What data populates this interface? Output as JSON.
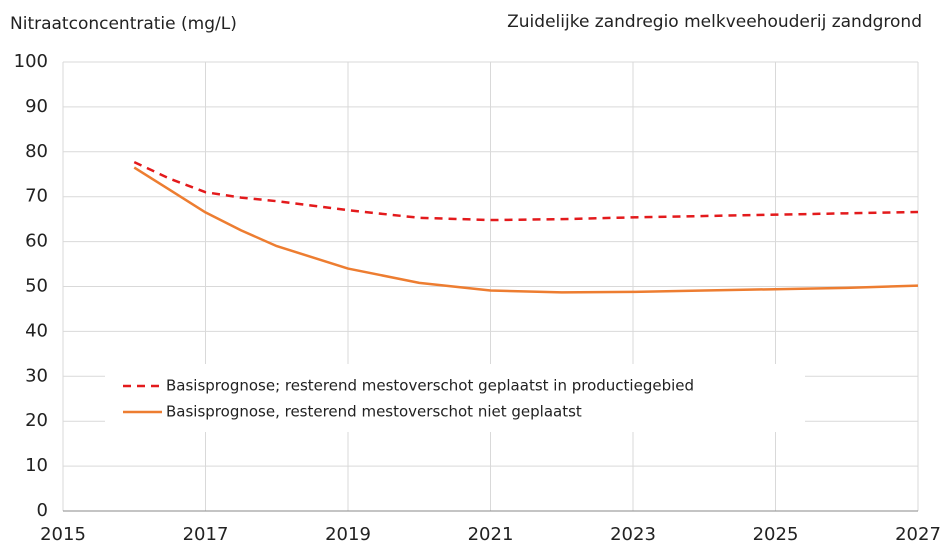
{
  "chart_data": {
    "type": "line",
    "title": "Zuidelijke zandregio melkveehouderij zandgrond",
    "y_label": "Nitraatconcentratie (mg/L)",
    "x": [
      2016,
      2016.5,
      2017,
      2017.5,
      2018,
      2019,
      2020,
      2021,
      2022,
      2023,
      2024,
      2025,
      2026,
      2027
    ],
    "series": [
      {
        "name": "Basisprognose; resterend mestoverschot  geplaatst in productiegebied",
        "color": "#e31a1c",
        "dash": true,
        "values": [
          77.7,
          74,
          71,
          69.8,
          69,
          67,
          65.3,
          64.8,
          65,
          65.4,
          65.7,
          66,
          66.3,
          66.6
        ]
      },
      {
        "name": "Basisprognose, resterend mestoverschot niet geplaatst",
        "color": "#ed7d31",
        "dash": false,
        "values": [
          76.5,
          71.5,
          66.5,
          62.5,
          59,
          54,
          50.8,
          49.1,
          48.7,
          48.8,
          49.1,
          49.4,
          49.7,
          50.2
        ]
      }
    ],
    "xlim": [
      2015,
      2027
    ],
    "xticks": [
      2015,
      2017,
      2019,
      2021,
      2023,
      2025,
      2027
    ],
    "ylim": [
      0,
      100
    ],
    "yticks": [
      0,
      10,
      20,
      30,
      40,
      50,
      60,
      70,
      80,
      90,
      100
    ],
    "grid": true
  }
}
